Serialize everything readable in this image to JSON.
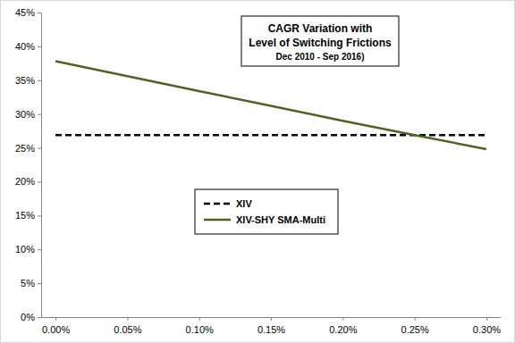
{
  "chart_data": {
    "type": "line",
    "title": [
      "CAGR Variation with",
      "Level of Switching Frictions"
    ],
    "subtitle": "Dec 2010 - Sep 2016)",
    "categories": [
      "0.00%",
      "0.05%",
      "0.10%",
      "0.15%",
      "0.20%",
      "0.25%",
      "0.30%"
    ],
    "series": [
      {
        "name": "XIV",
        "color": "#000000",
        "line_style": "dashed",
        "values": [
          26.9,
          26.9,
          26.9,
          26.9,
          26.9,
          26.9,
          26.9
        ]
      },
      {
        "name": "XIV-SHY SMA-Multi",
        "color": "#4f6228",
        "line_style": "solid",
        "values": [
          37.8,
          35.6,
          33.4,
          31.2,
          29.0,
          26.9,
          24.8
        ]
      }
    ],
    "ylim": [
      0,
      45
    ],
    "yticks": [
      {
        "value": 0,
        "label": "0%"
      },
      {
        "value": 5,
        "label": "5%"
      },
      {
        "value": 10,
        "label": "10%"
      },
      {
        "value": 15,
        "label": "15%"
      },
      {
        "value": 20,
        "label": "20%"
      },
      {
        "value": 25,
        "label": "25%"
      },
      {
        "value": 30,
        "label": "30%"
      },
      {
        "value": 35,
        "label": "35%"
      },
      {
        "value": 40,
        "label": "40%"
      },
      {
        "value": 45,
        "label": "45%"
      }
    ],
    "grid": false,
    "legend": "center"
  }
}
